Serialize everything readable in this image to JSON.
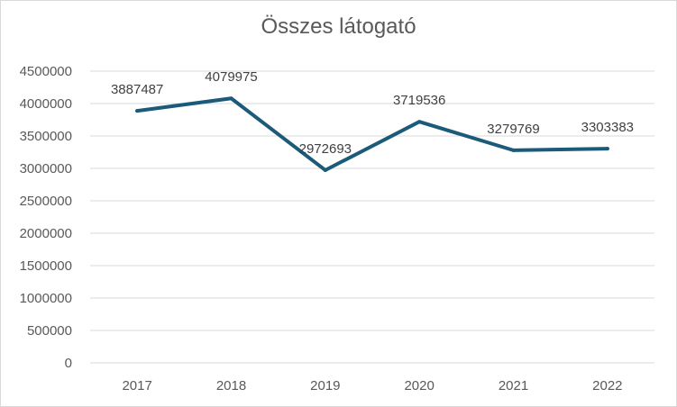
{
  "chart_data": {
    "type": "line",
    "title": "Összes látogató",
    "xlabel": "",
    "ylabel": "",
    "categories": [
      "2017",
      "2018",
      "2019",
      "2020",
      "2021",
      "2022"
    ],
    "series": [
      {
        "values": [
          3887487,
          4079975,
          2972693,
          3719536,
          3279769,
          3303383
        ],
        "color": "#1c5a7a"
      }
    ],
    "data_labels": [
      "3887487",
      "4079975",
      "2972693",
      "3719536",
      "3279769",
      "3303383"
    ],
    "ylim": [
      0,
      4500000
    ],
    "y_ticks": [
      "0",
      "500000",
      "1000000",
      "1500000",
      "2000000",
      "2500000",
      "3000000",
      "3500000",
      "4000000",
      "4500000"
    ],
    "grid": true,
    "legend": "none",
    "gridline_color": "#d9d9d9"
  }
}
